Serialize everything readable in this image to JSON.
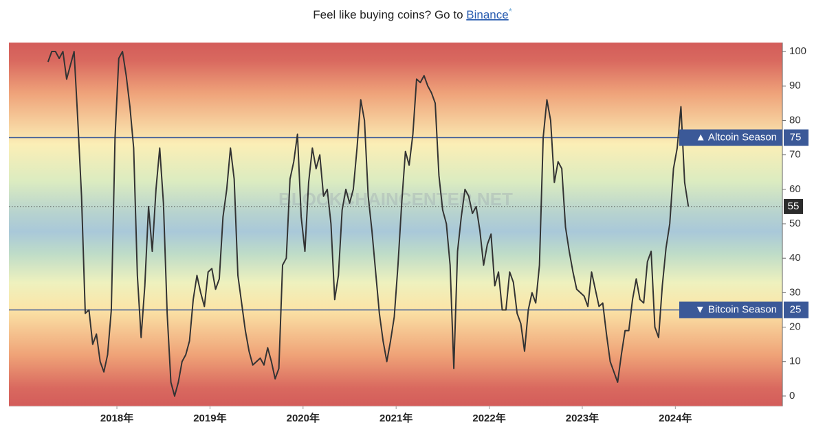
{
  "header": {
    "text": "Feel like buying coins? Go to",
    "link": "Binance",
    "mark": "*"
  },
  "chart_data": {
    "type": "line",
    "watermark": "BLOCKCHAINCENTER.NET",
    "color": "#333333",
    "x": [
      2017.26,
      2017.3,
      2017.34,
      2017.38,
      2017.42,
      2017.46,
      2017.5,
      2017.54,
      2017.58,
      2017.62,
      2017.66,
      2017.7,
      2017.74,
      2017.78,
      2017.82,
      2017.86,
      2017.9,
      2017.94,
      2017.98,
      2018.02,
      2018.06,
      2018.1,
      2018.14,
      2018.18,
      2018.22,
      2018.26,
      2018.3,
      2018.34,
      2018.38,
      2018.42,
      2018.46,
      2018.5,
      2018.54,
      2018.58,
      2018.62,
      2018.66,
      2018.7,
      2018.74,
      2018.78,
      2018.82,
      2018.86,
      2018.9,
      2018.94,
      2018.98,
      2019.02,
      2019.06,
      2019.1,
      2019.14,
      2019.18,
      2019.22,
      2019.26,
      2019.3,
      2019.34,
      2019.38,
      2019.42,
      2019.46,
      2019.5,
      2019.54,
      2019.58,
      2019.62,
      2019.66,
      2019.7,
      2019.74,
      2019.78,
      2019.82,
      2019.86,
      2019.9,
      2019.94,
      2019.98,
      2020.02,
      2020.06,
      2020.1,
      2020.14,
      2020.18,
      2020.22,
      2020.26,
      2020.3,
      2020.34,
      2020.38,
      2020.42,
      2020.46,
      2020.5,
      2020.54,
      2020.58,
      2020.62,
      2020.66,
      2020.7,
      2020.74,
      2020.78,
      2020.82,
      2020.86,
      2020.9,
      2020.94,
      2020.98,
      2021.02,
      2021.06,
      2021.1,
      2021.14,
      2021.18,
      2021.22,
      2021.26,
      2021.3,
      2021.34,
      2021.38,
      2021.42,
      2021.46,
      2021.5,
      2021.54,
      2021.58,
      2021.62,
      2021.66,
      2021.7,
      2021.74,
      2021.78,
      2021.82,
      2021.86,
      2021.9,
      2021.94,
      2021.98,
      2022.02,
      2022.06,
      2022.1,
      2022.14,
      2022.18,
      2022.22,
      2022.26,
      2022.3,
      2022.34,
      2022.38,
      2022.42,
      2022.46,
      2022.5,
      2022.54,
      2022.58,
      2022.62,
      2022.66,
      2022.7,
      2022.74,
      2022.78,
      2022.82,
      2022.86,
      2022.9,
      2022.94,
      2022.98,
      2023.02,
      2023.06,
      2023.1,
      2023.14,
      2023.18,
      2023.22,
      2023.26,
      2023.3,
      2023.34,
      2023.38,
      2023.42,
      2023.46,
      2023.5,
      2023.54,
      2023.58,
      2023.62,
      2023.66,
      2023.7,
      2023.74,
      2023.78,
      2023.82,
      2023.86,
      2023.9,
      2023.94,
      2023.98,
      2024.02,
      2024.06,
      2024.1,
      2024.14
    ],
    "values": [
      97,
      100,
      100,
      98,
      100,
      92,
      96,
      100,
      80,
      58,
      24,
      25,
      15,
      18,
      10,
      7,
      12,
      25,
      75,
      98,
      100,
      93,
      84,
      72,
      35,
      17,
      32,
      55,
      42,
      60,
      72,
      56,
      24,
      4,
      0,
      4,
      10,
      12,
      16,
      28,
      35,
      30,
      26,
      36,
      37,
      31,
      34,
      52,
      60,
      72,
      63,
      35,
      27,
      19,
      13,
      9,
      10,
      11,
      9,
      14,
      10,
      5,
      8,
      38,
      40,
      63,
      68,
      76,
      52,
      42,
      62,
      72,
      66,
      70,
      58,
      60,
      50,
      28,
      35,
      54,
      60,
      56,
      60,
      72,
      86,
      80,
      58,
      48,
      36,
      24,
      16,
      10,
      16,
      23,
      38,
      56,
      71,
      67,
      76,
      92,
      91,
      93,
      90,
      88,
      85,
      64,
      54,
      50,
      38,
      8,
      42,
      52,
      60,
      58,
      53,
      55,
      48,
      38,
      44,
      47,
      32,
      36,
      25,
      25,
      36,
      33,
      24,
      21,
      13,
      25,
      30,
      27,
      38,
      75,
      86,
      80,
      62,
      68,
      66,
      49,
      42,
      36,
      31,
      30,
      29,
      26,
      36,
      31,
      26,
      27,
      18,
      10,
      7,
      4,
      12,
      19,
      19,
      28,
      34,
      28,
      27,
      39,
      42,
      20,
      17,
      32,
      43,
      50,
      66,
      72,
      84,
      62,
      55
    ],
    "thresholds": [
      {
        "value": 75,
        "label": "▲ Altcoin Season",
        "color": "#3b5998"
      },
      {
        "value": 25,
        "label": "▼ Bitcoin Season",
        "color": "#3b5998"
      }
    ],
    "xlim": [
      2016.84,
      2025.15
    ],
    "ylim": [
      -3,
      102.6
    ],
    "xticks": [
      {
        "value": 2018,
        "label": "2018年"
      },
      {
        "value": 2019,
        "label": "2019年"
      },
      {
        "value": 2020,
        "label": "2020年"
      },
      {
        "value": 2021,
        "label": "2021年"
      },
      {
        "value": 2022,
        "label": "2022年"
      },
      {
        "value": 2023,
        "label": "2023年"
      },
      {
        "value": 2024,
        "label": "2024年"
      }
    ],
    "yticks": [
      0,
      10,
      20,
      30,
      40,
      50,
      60,
      70,
      80,
      90,
      100
    ]
  }
}
